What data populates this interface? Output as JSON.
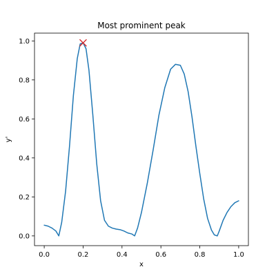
{
  "chart_data": {
    "type": "line",
    "title": "Most prominent peak",
    "xlabel": "x",
    "ylabel": "y'",
    "xlim": [
      -0.05,
      1.05
    ],
    "ylim": [
      -0.05,
      1.04
    ],
    "grid": false,
    "xticks": [
      0.0,
      0.2,
      0.4,
      0.6,
      0.8,
      1.0
    ],
    "xtick_labels": [
      "0.0",
      "0.2",
      "0.4",
      "0.6",
      "0.8",
      "1.0"
    ],
    "yticks": [
      0.0,
      0.2,
      0.4,
      0.6,
      0.8,
      1.0
    ],
    "ytick_labels": [
      "0.0",
      "0.2",
      "0.4",
      "0.6",
      "0.8",
      "1.0"
    ],
    "series": [
      {
        "color": "#1f77b4",
        "x": [
          0.0,
          0.02,
          0.04,
          0.06,
          0.075,
          0.09,
          0.11,
          0.13,
          0.15,
          0.17,
          0.185,
          0.2,
          0.215,
          0.23,
          0.25,
          0.27,
          0.29,
          0.31,
          0.33,
          0.35,
          0.37,
          0.39,
          0.41,
          0.43,
          0.45,
          0.465,
          0.48,
          0.5,
          0.53,
          0.56,
          0.59,
          0.62,
          0.65,
          0.675,
          0.7,
          0.72,
          0.74,
          0.76,
          0.78,
          0.8,
          0.82,
          0.84,
          0.86,
          0.875,
          0.89,
          0.9,
          0.92,
          0.94,
          0.96,
          0.98,
          1.0
        ],
        "y": [
          0.055,
          0.05,
          0.04,
          0.025,
          0.0,
          0.07,
          0.23,
          0.46,
          0.72,
          0.91,
          0.985,
          0.99,
          0.96,
          0.85,
          0.62,
          0.37,
          0.18,
          0.08,
          0.05,
          0.04,
          0.035,
          0.032,
          0.025,
          0.015,
          0.01,
          0.0,
          0.04,
          0.12,
          0.27,
          0.44,
          0.62,
          0.76,
          0.855,
          0.88,
          0.875,
          0.83,
          0.74,
          0.61,
          0.46,
          0.32,
          0.19,
          0.09,
          0.03,
          0.005,
          0.0,
          0.025,
          0.08,
          0.12,
          0.15,
          0.17,
          0.18
        ]
      }
    ],
    "annotations": [
      {
        "type": "marker",
        "marker": "x",
        "color": "#d62728",
        "x": 0.2,
        "y": 0.99
      }
    ]
  }
}
